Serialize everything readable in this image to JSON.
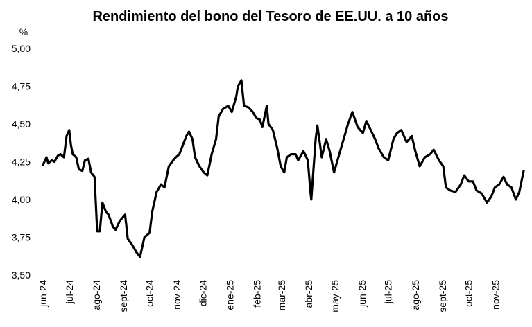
{
  "chart_data": {
    "type": "line",
    "title": "Rendimiento del bono del Tesoro de EE.UU. a 10 años",
    "ylabel": "%",
    "xlabel": "",
    "ylim": [
      3.5,
      5.0
    ],
    "y_ticks": [
      "3,50",
      "3,75",
      "4,00",
      "4,25",
      "4,50",
      "4,75",
      "5,00"
    ],
    "y_tick_values": [
      3.5,
      3.75,
      4.0,
      4.25,
      4.5,
      4.75,
      5.0
    ],
    "x_ticks": [
      "jun-24",
      "jul-24",
      "ago-24",
      "sept-24",
      "oct-24",
      "nov-24",
      "dic-24",
      "ene-25",
      "feb-25",
      "mar-25",
      "abr-25",
      "may-25",
      "jun-25",
      "jul-25",
      "ago-25",
      "sept-25",
      "oct-25",
      "nov-25"
    ],
    "x_tick_dates": [
      "2024-06-01",
      "2024-07-01",
      "2024-08-01",
      "2024-09-01",
      "2024-10-01",
      "2024-11-01",
      "2024-12-01",
      "2025-01-01",
      "2025-02-01",
      "2025-03-01",
      "2025-04-01",
      "2025-05-01",
      "2025-06-01",
      "2025-07-01",
      "2025-08-01",
      "2025-09-01",
      "2025-10-01",
      "2025-11-01"
    ],
    "x_range": [
      "2024-06-01",
      "2025-12-03"
    ],
    "grid": false,
    "legend": "none",
    "line_color": "#000000",
    "series": [
      {
        "x": [
          "2024-06-01",
          "2024-06-05",
          "2024-06-07",
          "2024-06-11",
          "2024-06-14",
          "2024-06-18",
          "2024-06-21",
          "2024-06-25",
          "2024-06-28",
          "2024-07-01",
          "2024-07-03",
          "2024-07-05",
          "2024-07-09",
          "2024-07-12",
          "2024-07-16",
          "2024-07-19",
          "2024-07-23",
          "2024-07-26",
          "2024-07-30",
          "2024-08-02",
          "2024-08-05",
          "2024-08-08",
          "2024-08-12",
          "2024-08-15",
          "2024-08-20",
          "2024-08-23",
          "2024-08-28",
          "2024-09-03",
          "2024-09-06",
          "2024-09-11",
          "2024-09-16",
          "2024-09-20",
          "2024-09-25",
          "2024-10-01",
          "2024-10-04",
          "2024-10-09",
          "2024-10-14",
          "2024-10-18",
          "2024-10-23",
          "2024-10-28",
          "2024-10-31",
          "2024-11-04",
          "2024-11-08",
          "2024-11-12",
          "2024-11-15",
          "2024-11-19",
          "2024-11-22",
          "2024-11-27",
          "2024-12-02",
          "2024-12-06",
          "2024-12-11",
          "2024-12-16",
          "2024-12-19",
          "2024-12-24",
          "2024-12-30",
          "2025-01-03",
          "2025-01-08",
          "2025-01-10",
          "2025-01-14",
          "2025-01-17",
          "2025-01-22",
          "2025-01-27",
          "2025-01-31",
          "2025-02-04",
          "2025-02-07",
          "2025-02-12",
          "2025-02-14",
          "2025-02-19",
          "2025-02-24",
          "2025-02-28",
          "2025-03-04",
          "2025-03-07",
          "2025-03-12",
          "2025-03-17",
          "2025-03-20",
          "2025-03-26",
          "2025-03-31",
          "2025-04-03",
          "2025-04-04",
          "2025-04-09",
          "2025-04-11",
          "2025-04-16",
          "2025-04-21",
          "2025-04-25",
          "2025-04-30",
          "2025-05-06",
          "2025-05-12",
          "2025-05-16",
          "2025-05-21",
          "2025-05-27",
          "2025-06-02",
          "2025-06-06",
          "2025-06-11",
          "2025-06-16",
          "2025-06-20",
          "2025-06-26",
          "2025-07-01",
          "2025-07-07",
          "2025-07-11",
          "2025-07-16",
          "2025-07-22",
          "2025-07-28",
          "2025-08-01",
          "2025-08-06",
          "2025-08-12",
          "2025-08-18",
          "2025-08-22",
          "2025-08-28",
          "2025-09-02",
          "2025-09-05",
          "2025-09-10",
          "2025-09-16",
          "2025-09-22",
          "2025-09-26",
          "2025-10-01",
          "2025-10-06",
          "2025-10-10",
          "2025-10-16",
          "2025-10-22",
          "2025-10-27",
          "2025-10-31",
          "2025-11-05",
          "2025-11-10",
          "2025-11-14",
          "2025-11-19",
          "2025-11-24",
          "2025-11-28",
          "2025-12-03"
        ],
        "values": [
          4.23,
          4.28,
          4.24,
          4.26,
          4.25,
          4.29,
          4.3,
          4.28,
          4.42,
          4.46,
          4.36,
          4.3,
          4.28,
          4.2,
          4.19,
          4.26,
          4.27,
          4.18,
          4.15,
          3.79,
          3.79,
          3.98,
          3.92,
          3.9,
          3.82,
          3.8,
          3.86,
          3.9,
          3.74,
          3.7,
          3.65,
          3.62,
          3.75,
          3.78,
          3.92,
          4.05,
          4.1,
          4.08,
          4.22,
          4.26,
          4.28,
          4.3,
          4.36,
          4.42,
          4.45,
          4.4,
          4.28,
          4.22,
          4.18,
          4.16,
          4.3,
          4.4,
          4.55,
          4.6,
          4.62,
          4.58,
          4.68,
          4.75,
          4.79,
          4.62,
          4.61,
          4.58,
          4.54,
          4.53,
          4.48,
          4.62,
          4.5,
          4.46,
          4.34,
          4.22,
          4.18,
          4.28,
          4.3,
          4.3,
          4.26,
          4.32,
          4.26,
          4.05,
          4.0,
          4.4,
          4.49,
          4.28,
          4.4,
          4.32,
          4.18,
          4.3,
          4.42,
          4.5,
          4.58,
          4.48,
          4.44,
          4.52,
          4.46,
          4.4,
          4.34,
          4.28,
          4.26,
          4.4,
          4.44,
          4.46,
          4.38,
          4.42,
          4.32,
          4.22,
          4.28,
          4.3,
          4.33,
          4.26,
          4.22,
          4.08,
          4.06,
          4.05,
          4.1,
          4.16,
          4.12,
          4.12,
          4.06,
          4.04,
          3.98,
          4.02,
          4.08,
          4.1,
          4.15,
          4.1,
          4.08,
          4.0,
          4.05,
          4.19
        ]
      }
    ]
  }
}
